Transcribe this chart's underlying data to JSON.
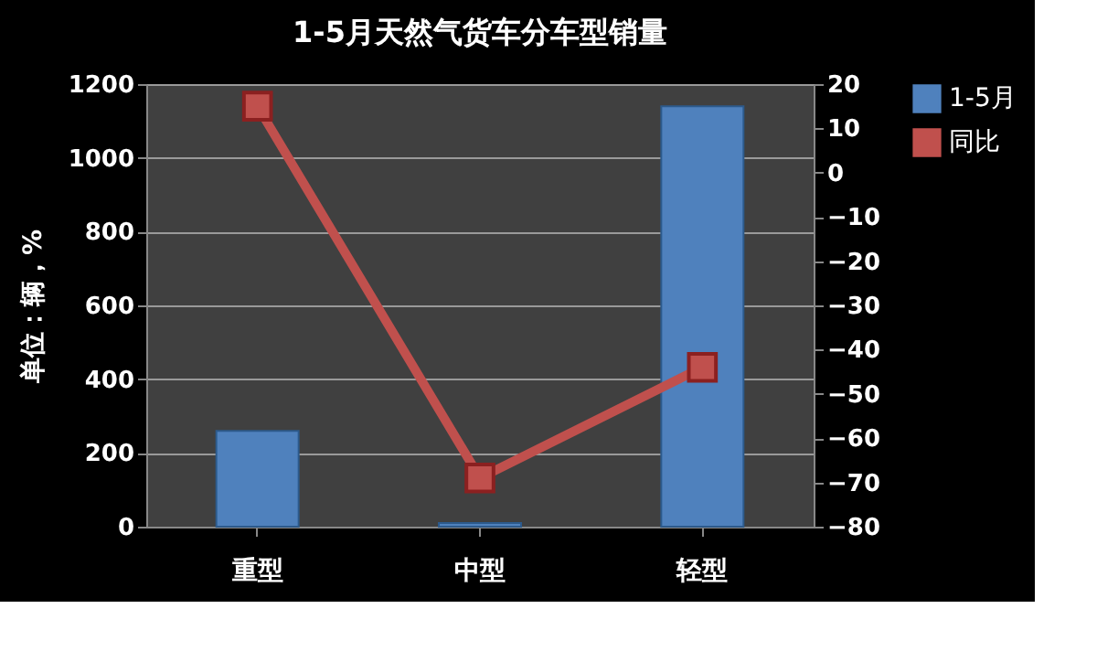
{
  "chart_data": {
    "type": "bar",
    "title": "1-5月天然气货车分车型销量",
    "ylabel": "单位：辆，%",
    "categories": [
      "重型",
      "中型",
      "轻型"
    ],
    "series": [
      {
        "name": "1-5月",
        "color": "#4f81bd",
        "values": [
          260,
          10,
          1140
        ]
      },
      {
        "name": "同比",
        "type": "line",
        "axis": "y2",
        "color": "#c0504d",
        "marker": "square",
        "values": [
          15,
          -69,
          -44
        ]
      }
    ],
    "ylim": [
      0,
      1200
    ],
    "yticks": [
      0,
      200,
      400,
      600,
      800,
      1000,
      1200
    ],
    "y2lim": [
      -80,
      20
    ],
    "y2ticks": [
      -80,
      -70,
      -60,
      -50,
      -40,
      -30,
      -20,
      -10,
      0,
      10,
      20
    ],
    "grid": "y",
    "legend": "right"
  }
}
